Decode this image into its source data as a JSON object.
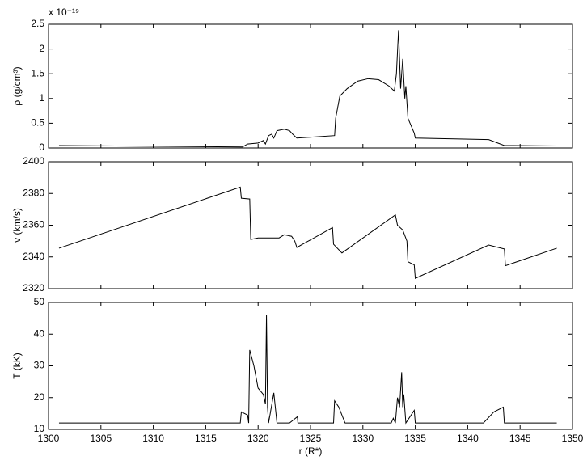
{
  "chart_data": [
    {
      "type": "line",
      "ylabel": "ρ (g/cm³)",
      "scale_label": "x 10⁻¹⁹",
      "xtick_labels": false,
      "xlim": [
        1300,
        1350
      ],
      "xticks": [
        1300,
        1305,
        1310,
        1315,
        1320,
        1325,
        1330,
        1335,
        1340,
        1345,
        1350
      ],
      "ylim": [
        0,
        2.5
      ],
      "yticks": [
        0,
        0.5,
        1,
        1.5,
        2,
        2.5
      ],
      "x": [
        1301,
        1318.5,
        1319,
        1320,
        1320.5,
        1320.7,
        1321,
        1321.3,
        1321.5,
        1321.8,
        1322.5,
        1323,
        1323.3,
        1323.7,
        1327.3,
        1327.4,
        1327.8,
        1328.5,
        1329.5,
        1330.5,
        1331.5,
        1332.5,
        1333,
        1333.2,
        1333.4,
        1333.6,
        1333.8,
        1334,
        1334.1,
        1334.3,
        1334.6,
        1334.9,
        1335,
        1342,
        1343.5,
        1348.5
      ],
      "series": [
        {
          "color": "#000000",
          "values": [
            0.05,
            0.02,
            0.08,
            0.1,
            0.15,
            0.08,
            0.25,
            0.28,
            0.2,
            0.35,
            0.38,
            0.35,
            0.28,
            0.2,
            0.25,
            0.6,
            1.05,
            1.2,
            1.35,
            1.4,
            1.38,
            1.25,
            1.15,
            1.5,
            2.38,
            1.2,
            1.8,
            1.0,
            1.25,
            0.6,
            0.45,
            0.3,
            0.2,
            0.17,
            0.05,
            0.04
          ]
        }
      ]
    },
    {
      "type": "line",
      "ylabel": "v (km/s)",
      "xtick_labels": false,
      "xlim": [
        1300,
        1350
      ],
      "xticks": [
        1300,
        1305,
        1310,
        1315,
        1320,
        1325,
        1330,
        1335,
        1340,
        1345,
        1350
      ],
      "ylim": [
        2320,
        2400
      ],
      "yticks": [
        2320,
        2340,
        2360,
        2380,
        2400
      ],
      "x": [
        1301,
        1318.3,
        1318.4,
        1319.2,
        1319.3,
        1320,
        1322,
        1322.5,
        1323.2,
        1323.5,
        1323.7,
        1327.1,
        1327.2,
        1328,
        1333.1,
        1333.3,
        1333.8,
        1334.2,
        1334.3,
        1334.9,
        1335,
        1342,
        1343.5,
        1343.6,
        1348.5
      ],
      "series": [
        {
          "color": "#000000",
          "values": [
            2345.5,
            2384,
            2377,
            2376.5,
            2351,
            2352,
            2352,
            2354,
            2353,
            2350,
            2346,
            2358.5,
            2348,
            2342.5,
            2366.5,
            2360,
            2357,
            2350,
            2337,
            2335,
            2326.5,
            2347.5,
            2345,
            2334.5,
            2345.5
          ]
        }
      ]
    },
    {
      "type": "line",
      "ylabel": "T (kK)",
      "xlabel": "r (R*)",
      "xtick_labels": true,
      "xlim": [
        1300,
        1350
      ],
      "xticks": [
        1300,
        1305,
        1310,
        1315,
        1320,
        1325,
        1330,
        1335,
        1340,
        1345,
        1350
      ],
      "ylim": [
        10,
        50
      ],
      "yticks": [
        10,
        20,
        30,
        40,
        50
      ],
      "x": [
        1301,
        1318.3,
        1318.4,
        1319,
        1319.1,
        1319.2,
        1319.6,
        1320,
        1320.5,
        1320.7,
        1320.8,
        1320.9,
        1321,
        1321.5,
        1321.8,
        1323,
        1323.75,
        1323.8,
        1327.2,
        1327.3,
        1327.7,
        1328.3,
        1332.7,
        1332.9,
        1333.1,
        1333.3,
        1333.5,
        1333.7,
        1333.8,
        1333.9,
        1334.1,
        1334.9,
        1335,
        1341.5,
        1342.5,
        1343.4,
        1343.5,
        1348.5
      ],
      "series": [
        {
          "color": "#000000",
          "values": [
            12,
            12,
            15.5,
            14.5,
            12,
            35,
            30,
            23,
            21,
            18,
            46,
            17,
            12,
            21.5,
            12,
            12,
            14,
            12,
            12,
            19,
            17,
            12,
            12,
            13.5,
            12,
            20,
            17,
            28,
            17,
            21,
            12,
            16,
            12,
            12,
            15.5,
            17,
            12,
            12
          ]
        }
      ]
    }
  ]
}
